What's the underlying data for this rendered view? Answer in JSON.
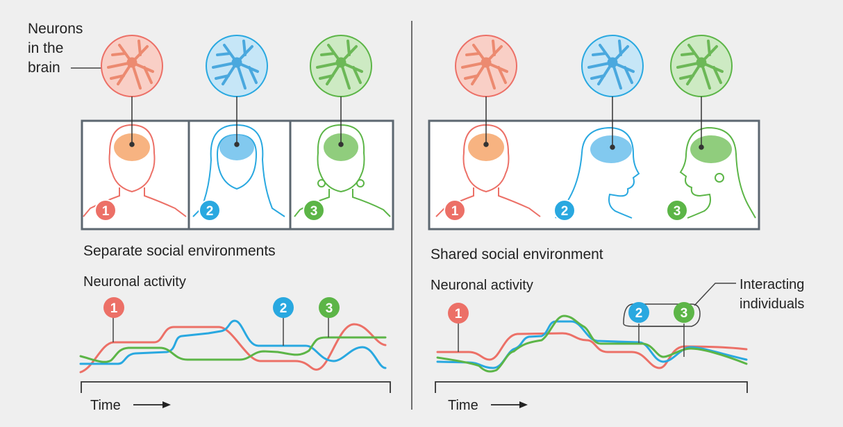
{
  "colors": {
    "person1": "#ec7067",
    "person2": "#29a8e0",
    "person3": "#5cb547",
    "background": "#efefef",
    "frame": "#5c6770"
  },
  "callout": {
    "line1": "Neurons",
    "line2": "in the",
    "line3": "brain"
  },
  "left": {
    "caption": "Separate social environments",
    "activity_label": "Neuronal activity",
    "time_label": "Time"
  },
  "right": {
    "caption": "Shared social environment",
    "activity_label": "Neuronal activity",
    "time_label": "Time",
    "interacting_line1": "Interacting",
    "interacting_line2": "individuals"
  },
  "badges": [
    "1",
    "2",
    "3"
  ]
}
